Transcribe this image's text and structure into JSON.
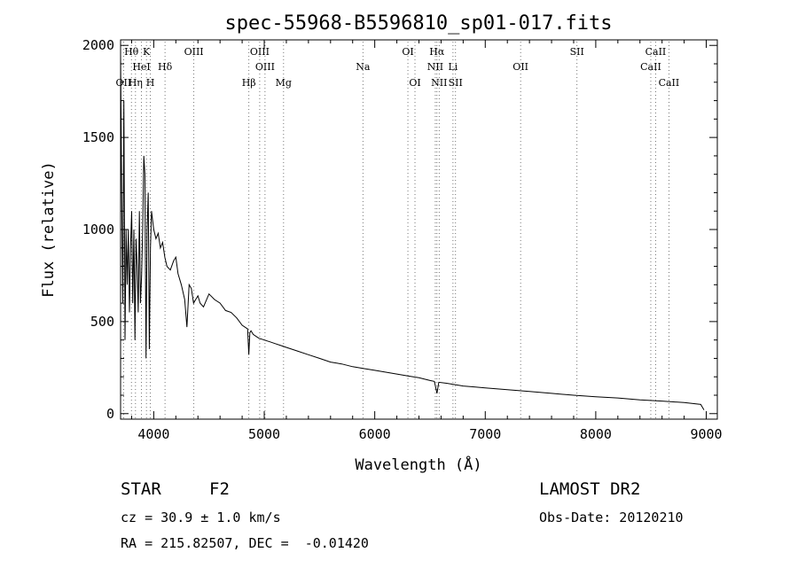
{
  "chart_data": {
    "type": "line",
    "title": "spec-55968-B5596810_sp01-017.fits",
    "xlabel": "Wavelength (Å)",
    "ylabel": "Flux (relative)",
    "xlim": [
      3700,
      9100
    ],
    "ylim": [
      -30,
      2030
    ],
    "xticks": [
      4000,
      5000,
      6000,
      7000,
      8000,
      9000
    ],
    "yticks": [
      0,
      500,
      1000,
      1500,
      2000
    ],
    "grid": false,
    "series": [
      {
        "x": [
          3700,
          3710,
          3720,
          3730,
          3740,
          3750,
          3760,
          3770,
          3780,
          3790,
          3800,
          3810,
          3820,
          3830,
          3840,
          3850,
          3860,
          3870,
          3880,
          3890,
          3900,
          3910,
          3920,
          3930,
          3940,
          3950,
          3960,
          3970,
          3980,
          3990,
          4000,
          4020,
          4040,
          4060,
          4080,
          4100,
          4120,
          4150,
          4180,
          4200,
          4220,
          4250,
          4280,
          4300,
          4320,
          4340,
          4360,
          4380,
          4400,
          4420,
          4450,
          4500,
          4550,
          4600,
          4650,
          4700,
          4750,
          4800,
          4850,
          4860,
          4870,
          4880,
          4900,
          4950,
          5000,
          5050,
          5100,
          5150,
          5200,
          5300,
          5400,
          5500,
          5600,
          5700,
          5800,
          5900,
          6000,
          6100,
          6200,
          6300,
          6400,
          6500,
          6540,
          6563,
          6580,
          6650,
          6700,
          6800,
          6900,
          7000,
          7200,
          7400,
          7600,
          7800,
          8000,
          8200,
          8400,
          8600,
          8800,
          8950,
          8980
        ],
        "y": [
          1950,
          1200,
          600,
          1700,
          400,
          1000,
          700,
          1000,
          550,
          900,
          1100,
          600,
          1000,
          400,
          950,
          800,
          550,
          1100,
          600,
          750,
          1000,
          1400,
          1300,
          300,
          1000,
          1200,
          350,
          900,
          1100,
          1050,
          1000,
          950,
          980,
          900,
          930,
          850,
          800,
          780,
          830,
          850,
          760,
          700,
          620,
          470,
          700,
          680,
          600,
          620,
          640,
          600,
          580,
          650,
          620,
          600,
          560,
          550,
          520,
          480,
          460,
          320,
          440,
          450,
          430,
          410,
          400,
          390,
          380,
          370,
          360,
          340,
          320,
          300,
          280,
          270,
          255,
          245,
          235,
          225,
          215,
          205,
          195,
          180,
          175,
          110,
          170,
          165,
          160,
          150,
          145,
          140,
          130,
          120,
          110,
          100,
          92,
          85,
          75,
          68,
          60,
          50,
          20
        ]
      }
    ],
    "lines": [
      {
        "label": "Hθ",
        "x": 3798
      },
      {
        "label": "K",
        "x": 3934
      },
      {
        "label": "OIII",
        "x": 4363
      },
      {
        "label": "OIII",
        "x": 4959
      },
      {
        "label": "OI",
        "x": 6300
      },
      {
        "label": "Hα",
        "x": 6563
      },
      {
        "label": "SII",
        "x": 7830
      },
      {
        "label": "CaII",
        "x": 8542
      },
      {
        "label": "HeI",
        "x": 3889
      },
      {
        "label": "Hδ",
        "x": 4102
      },
      {
        "label": "OIII",
        "x": 5007
      },
      {
        "label": "Na",
        "x": 5893
      },
      {
        "label": "NII",
        "x": 6548
      },
      {
        "label": "Li",
        "x": 6708
      },
      {
        "label": "OII",
        "x": 7320
      },
      {
        "label": "CaII",
        "x": 8498
      },
      {
        "label": "OII",
        "x": 3727
      },
      {
        "label": "Hη",
        "x": 3835
      },
      {
        "label": "H",
        "x": 3969
      },
      {
        "label": "Hβ",
        "x": 4861
      },
      {
        "label": "Mg",
        "x": 5175
      },
      {
        "label": "OI",
        "x": 6364
      },
      {
        "label": "NII",
        "x": 6583
      },
      {
        "label": "SII",
        "x": 6731
      },
      {
        "label": "CaII",
        "x": 8662
      }
    ]
  },
  "info": {
    "object_type": "STAR",
    "subclass": "F2",
    "survey": "LAMOST DR2",
    "cz": "cz = 30.9 ± 1.0 km/s",
    "obs_date": "Obs-Date: 20120210",
    "coords": "RA = 215.82507, DEC =  -0.01420"
  }
}
